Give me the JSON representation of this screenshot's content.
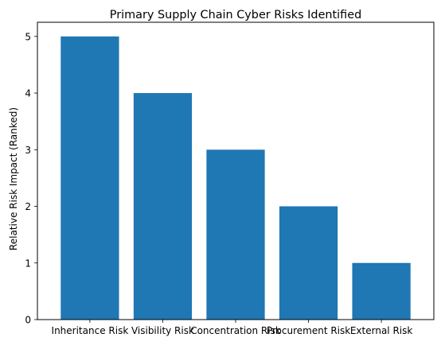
{
  "chart_data": {
    "type": "bar",
    "title": "Primary Supply Chain Cyber Risks Identified",
    "xlabel": "",
    "ylabel": "Relative Risk Impact (Ranked)",
    "categories": [
      "Inheritance Risk",
      "Visibility Risk",
      "Concentration Risk",
      "Procurement Risk",
      "External Risk"
    ],
    "values": [
      5,
      4,
      3,
      2,
      1
    ],
    "ylim": [
      0,
      5.25
    ],
    "yticks": [
      "0",
      "1",
      "2",
      "3",
      "4",
      "5"
    ],
    "bar_color": "#1f77b4",
    "grid": false,
    "legend": "none"
  }
}
